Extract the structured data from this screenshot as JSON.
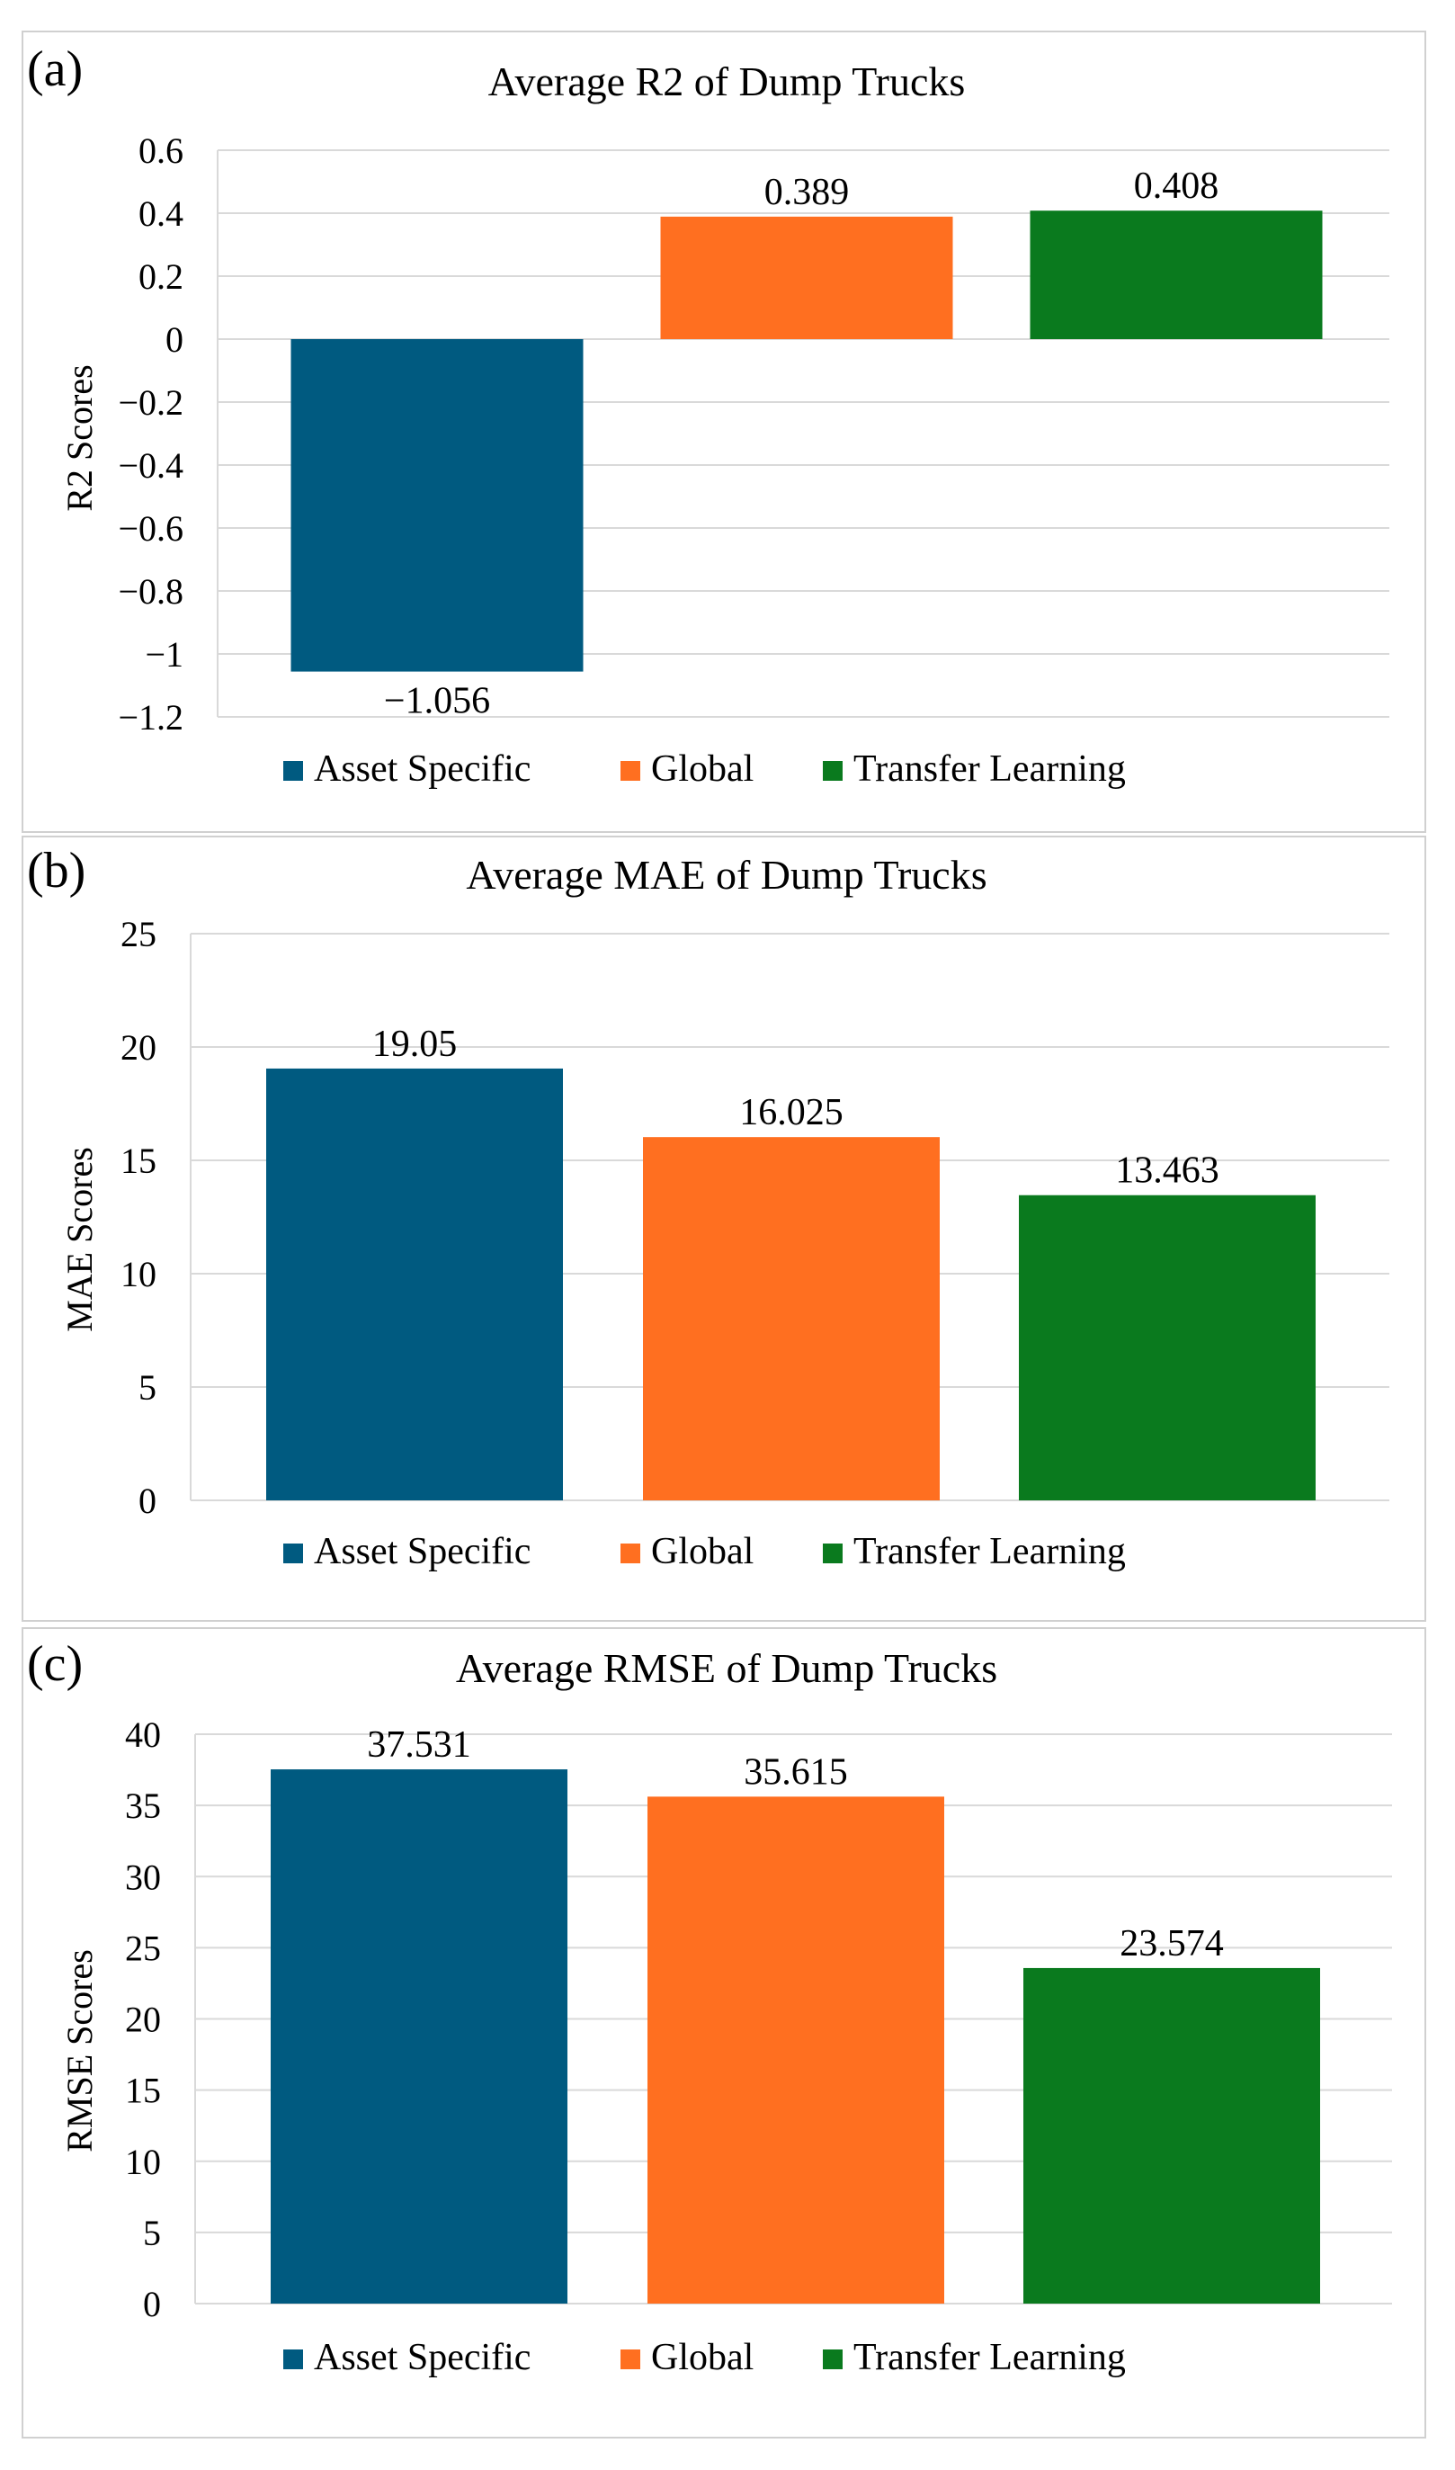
{
  "colors": {
    "asset_specific": "#005A80",
    "global": "#FF6F20",
    "transfer_learning": "#0A7A1E",
    "grid": "#d9d9d9",
    "frame": "#d0d0d0"
  },
  "chart_data": [
    {
      "panel_label": "(a)",
      "type": "bar",
      "title": "Average R2 of Dump Trucks",
      "ylabel": "R2 Scores",
      "xlabel": "",
      "categories": [
        "Asset Specific",
        "Global",
        "Transfer Learning"
      ],
      "values": [
        -1.056,
        0.389,
        0.408
      ],
      "value_labels": [
        "−1.056",
        "0.389",
        "0.408"
      ],
      "ylim": [
        -1.2,
        0.6
      ],
      "yticks": [
        0.6,
        0.4,
        0.2,
        0,
        -0.2,
        -0.4,
        -0.6,
        -0.8,
        -1,
        -1.2
      ],
      "ytick_labels": [
        "0.6",
        "0.4",
        "0.2",
        "0",
        "−0.2",
        "−0.4",
        "−0.6",
        "−0.8",
        "−1",
        "−1.2"
      ],
      "legend": [
        "Asset Specific",
        "Global",
        "Transfer Learning"
      ],
      "legend_position": "bottom",
      "grid": true
    },
    {
      "panel_label": "(b)",
      "type": "bar",
      "title": "Average MAE of Dump Trucks",
      "ylabel": "MAE Scores",
      "xlabel": "",
      "categories": [
        "Asset Specific",
        "Global",
        "Transfer Learning"
      ],
      "values": [
        19.05,
        16.025,
        13.463
      ],
      "value_labels": [
        "19.05",
        "16.025",
        "13.463"
      ],
      "ylim": [
        0,
        25
      ],
      "yticks": [
        25,
        20,
        15,
        10,
        5,
        0
      ],
      "ytick_labels": [
        "25",
        "20",
        "15",
        "10",
        "5",
        "0"
      ],
      "legend": [
        "Asset Specific",
        "Global",
        "Transfer Learning"
      ],
      "legend_position": "bottom",
      "grid": true
    },
    {
      "panel_label": "(c)",
      "type": "bar",
      "title": "Average RMSE of Dump Trucks",
      "ylabel": "RMSE Scores",
      "xlabel": "",
      "categories": [
        "Asset Specific",
        "Global",
        "Transfer Learning"
      ],
      "values": [
        37.531,
        35.615,
        23.574
      ],
      "value_labels": [
        "37.531",
        "35.615",
        "23.574"
      ],
      "ylim": [
        0,
        40
      ],
      "yticks": [
        40,
        35,
        30,
        25,
        20,
        15,
        10,
        5,
        0
      ],
      "ytick_labels": [
        "40",
        "35",
        "30",
        "25",
        "20",
        "15",
        "10",
        "5",
        "0"
      ],
      "legend": [
        "Asset Specific",
        "Global",
        "Transfer Learning"
      ],
      "legend_position": "bottom",
      "grid": true
    }
  ]
}
